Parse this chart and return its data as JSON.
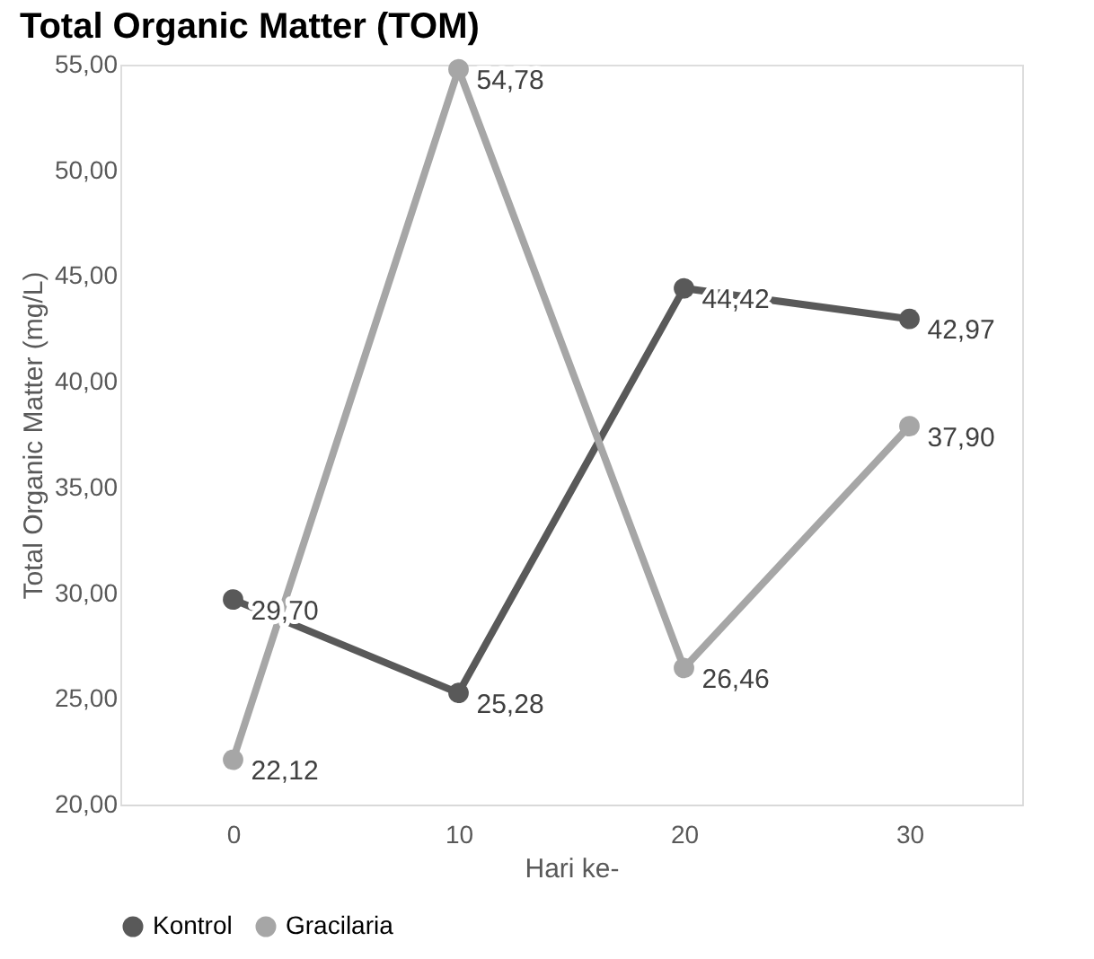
{
  "chart_data": {
    "type": "line",
    "title": "Total Organic Matter (TOM)",
    "xlabel": "Hari ke-",
    "ylabel": "Total Organic Matter (mg/L)",
    "categories": [
      "0",
      "10",
      "20",
      "30"
    ],
    "series": [
      {
        "name": "Kontrol",
        "color": "#595959",
        "values": [
          29.7,
          25.28,
          44.42,
          42.97
        ],
        "value_labels": [
          "29,70",
          "25,28",
          "44,42",
          "42,97"
        ]
      },
      {
        "name": "Gracilaria",
        "color": "#a6a6a6",
        "values": [
          22.12,
          54.78,
          26.46,
          37.9
        ],
        "value_labels": [
          "22,12",
          "54,78",
          "26,46",
          "37,90"
        ]
      }
    ],
    "ylim": [
      20,
      55
    ],
    "yticks": [
      {
        "value": 20,
        "label": "20,00"
      },
      {
        "value": 25,
        "label": "25,00"
      },
      {
        "value": 30,
        "label": "30,00"
      },
      {
        "value": 35,
        "label": "35,00"
      },
      {
        "value": 40,
        "label": "40,00"
      },
      {
        "value": 45,
        "label": "45,00"
      },
      {
        "value": 50,
        "label": "50,00"
      },
      {
        "value": 55,
        "label": "55,00"
      }
    ],
    "grid": false,
    "legend": "bottom",
    "marker": "circle",
    "line_style": "solid"
  }
}
